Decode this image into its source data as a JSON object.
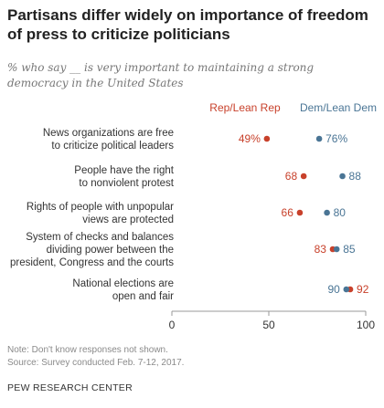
{
  "title": "Partisans differ widely on importance of freedom of press to criticize politicians",
  "subtitle": "% who say __ is very important to maintaining a strong democracy in the United States",
  "note": "Note: Don't know responses not shown.",
  "source": "Source: Survey conducted Feb. 7-12, 2017.",
  "org": "PEW RESEARCH CENTER",
  "colors": {
    "rep": "#c8412b",
    "dem": "#4a7595",
    "axis": "#999999",
    "text": "#333333"
  },
  "chart_data": {
    "type": "scatter",
    "series": [
      {
        "name": "Rep/Lean Rep",
        "values": [
          49,
          68,
          66,
          83,
          92
        ]
      },
      {
        "name": "Dem/Lean Dem",
        "values": [
          76,
          88,
          80,
          85,
          90
        ]
      }
    ],
    "categories": [
      [
        "News organizations are free",
        "to criticize political leaders"
      ],
      [
        "People have the right",
        "to nonviolent protest"
      ],
      [
        "Rights of people with unpopular",
        "views are protected"
      ],
      [
        "System of checks and balances",
        "dividing power between the",
        "president, Congress and the courts"
      ],
      [
        "National elections are",
        "open and fair"
      ]
    ],
    "rep_labels": [
      "49%",
      "68",
      "66",
      "83",
      "92"
    ],
    "dem_labels": [
      "76%",
      "88",
      "80",
      "85",
      "90"
    ],
    "xlim": [
      0,
      100
    ],
    "xticks": [
      "0",
      "50",
      "100"
    ]
  }
}
